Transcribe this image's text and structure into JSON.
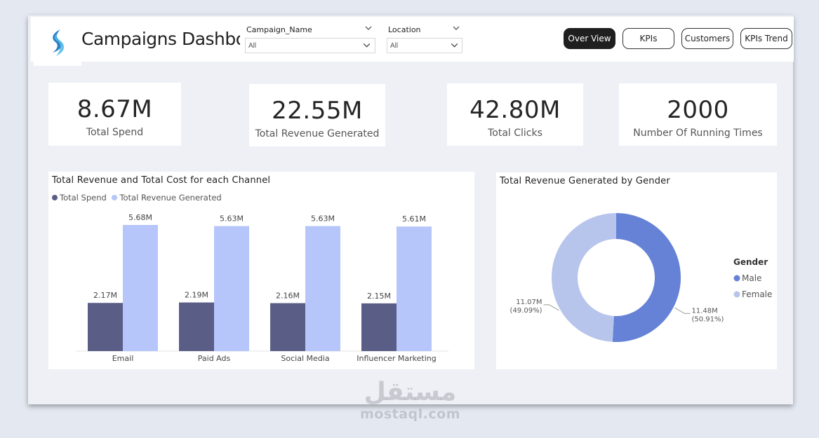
{
  "header": {
    "title": "Campaigns Dashboard",
    "slicers": [
      {
        "label": "Campaign_Name",
        "value": "All"
      },
      {
        "label": "Location",
        "value": "All"
      }
    ],
    "nav": [
      "Over View",
      "KPIs",
      "Customers",
      "KPIs Trend"
    ],
    "active_nav": "Over View"
  },
  "kpis": [
    {
      "value": "8.67M",
      "label": "Total Spend"
    },
    {
      "value": "22.55M",
      "label": "Total Revenue Generated"
    },
    {
      "value": "42.80M",
      "label": "Total Clicks"
    },
    {
      "value": "2000",
      "label": "Number Of Running Times"
    }
  ],
  "colors": {
    "spend": "#5a5e86",
    "revenue": "#b6c6fa",
    "male": "#6582d6",
    "female": "#b7c5ec",
    "accent_dark": "#1f1f1f"
  },
  "chart_data": [
    {
      "type": "bar",
      "title": "Total Revenue and Total Cost for each Channel",
      "categories": [
        "Email",
        "Paid Ads",
        "Social Media",
        "Influencer Marketing"
      ],
      "series": [
        {
          "name": "Total Spend",
          "values": [
            2.17,
            2.19,
            2.16,
            2.15
          ],
          "labels": [
            "2.17M",
            "2.19M",
            "2.16M",
            "2.15M"
          ]
        },
        {
          "name": "Total Revenue Generated",
          "values": [
            5.68,
            5.63,
            5.63,
            5.61
          ],
          "labels": [
            "5.68M",
            "5.63M",
            "5.63M",
            "5.61M"
          ]
        }
      ],
      "legend": "top-left",
      "grid": false
    },
    {
      "type": "pie",
      "title": "Total Revenue Generated by Gender",
      "legend_title": "Gender",
      "slices": [
        {
          "name": "Male",
          "value": 11.48,
          "label": "11.48M",
          "percent": "(50.91%)"
        },
        {
          "name": "Female",
          "value": 11.07,
          "label": "11.07M",
          "percent": "(49.09%)"
        }
      ],
      "legend": "right"
    }
  ],
  "watermark": {
    "arabic": "مستقل",
    "latin": "mostaql.com"
  }
}
